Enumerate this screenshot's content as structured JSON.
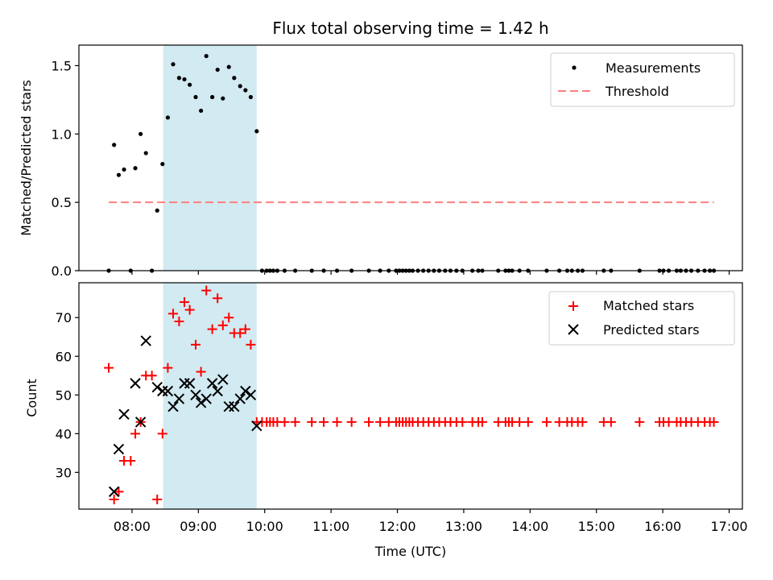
{
  "chart_data": {
    "type": "scatter",
    "title": "Flux total observing time = 1.42 h",
    "xlabel": "Time (UTC)",
    "x_units": "hours UTC (decimal)",
    "xlim": [
      7.2,
      17.2
    ],
    "x_ticks": [
      {
        "value": 8,
        "label": "08:00"
      },
      {
        "value": 9,
        "label": "09:00"
      },
      {
        "value": 10,
        "label": "10:00"
      },
      {
        "value": 11,
        "label": "11:00"
      },
      {
        "value": 12,
        "label": "12:00"
      },
      {
        "value": 13,
        "label": "13:00"
      },
      {
        "value": 14,
        "label": "14:00"
      },
      {
        "value": 15,
        "label": "15:00"
      },
      {
        "value": 16,
        "label": "16:00"
      },
      {
        "value": 17,
        "label": "17:00"
      }
    ],
    "shaded_interval": {
      "x_start": 8.47,
      "x_end": 9.88,
      "color": "#add8e6"
    },
    "colors": {
      "measurements": "#000000",
      "threshold": "#ff7f7f",
      "matched": "#ff0000",
      "predicted": "#000000",
      "shade": "#add8e6"
    },
    "top_panel": {
      "ylabel": "Matched/Predicted stars",
      "ylim": [
        0,
        1.65
      ],
      "y_ticks": [
        {
          "value": 0,
          "label": "0.0"
        },
        {
          "value": 0.5,
          "label": "0.5"
        },
        {
          "value": 1.0,
          "label": "1.0"
        },
        {
          "value": 1.5,
          "label": "1.5"
        }
      ],
      "threshold": {
        "y": 0.5,
        "x_start": 7.65,
        "x_end": 16.77
      },
      "legend": [
        {
          "label": "Measurements",
          "marker": "dot"
        },
        {
          "label": "Threshold",
          "marker": "dashed-line"
        }
      ],
      "measurements": {
        "x": [
          7.65,
          7.73,
          7.8,
          7.88,
          7.98,
          8.05,
          8.13,
          8.21,
          8.3,
          8.38,
          8.46,
          8.54,
          8.62,
          8.71,
          8.79,
          8.87,
          8.96,
          9.04,
          9.12,
          9.21,
          9.29,
          9.37,
          9.46,
          9.54,
          9.63,
          9.71,
          9.79,
          9.88,
          9.96,
          10.03,
          10.08,
          10.13,
          10.19,
          10.3,
          10.46,
          10.71,
          10.89,
          11.09,
          11.31,
          11.57,
          11.74,
          11.87,
          11.98,
          12.03,
          12.08,
          12.13,
          12.18,
          12.23,
          12.31,
          12.39,
          12.47,
          12.55,
          12.63,
          12.72,
          12.8,
          12.89,
          12.98,
          13.13,
          13.22,
          13.28,
          13.52,
          13.63,
          13.68,
          13.73,
          13.84,
          13.97,
          14.25,
          14.44,
          14.56,
          14.63,
          14.72,
          14.79,
          15.11,
          15.22,
          15.65,
          15.95,
          16.01,
          16.09,
          16.21,
          16.27,
          16.35,
          16.43,
          16.53,
          16.63,
          16.71,
          16.77
        ],
        "y": [
          0.0,
          0.92,
          0.7,
          0.74,
          0.0,
          0.75,
          1.0,
          0.86,
          0.0,
          0.44,
          0.78,
          1.12,
          1.51,
          1.41,
          1.4,
          1.36,
          1.27,
          1.17,
          1.57,
          1.27,
          1.47,
          1.26,
          1.49,
          1.41,
          1.35,
          1.32,
          1.27,
          1.02,
          0.0,
          0.0,
          0.0,
          0.0,
          0.0,
          0.0,
          0.0,
          0.0,
          0.0,
          0.0,
          0.0,
          0.0,
          0.0,
          0.0,
          0.0,
          0.0,
          0.0,
          0.0,
          0.0,
          0.0,
          0.0,
          0.0,
          0.0,
          0.0,
          0.0,
          0.0,
          0.0,
          0.0,
          0.0,
          0.0,
          0.0,
          0.0,
          0.0,
          0.0,
          0.0,
          0.0,
          0.0,
          0.0,
          0.0,
          0.0,
          0.0,
          0.0,
          0.0,
          0.0,
          0.0,
          0.0,
          0.0,
          0.0,
          0.0,
          0.0,
          0.0,
          0.0,
          0.0,
          0.0,
          0.0,
          0.0,
          0.0,
          0.0
        ]
      }
    },
    "bottom_panel": {
      "ylabel": "Count",
      "ylim": [
        20.5,
        79
      ],
      "y_ticks": [
        {
          "value": 30,
          "label": "30"
        },
        {
          "value": 40,
          "label": "40"
        },
        {
          "value": 50,
          "label": "50"
        },
        {
          "value": 60,
          "label": "60"
        },
        {
          "value": 70,
          "label": "70"
        }
      ],
      "legend": [
        {
          "label": "Matched stars",
          "marker": "plus"
        },
        {
          "label": "Predicted stars",
          "marker": "x"
        }
      ],
      "matched": {
        "x": [
          7.65,
          7.73,
          7.8,
          7.88,
          7.98,
          8.05,
          8.13,
          8.21,
          8.3,
          8.38,
          8.46,
          8.54,
          8.62,
          8.71,
          8.79,
          8.87,
          8.96,
          9.04,
          9.12,
          9.21,
          9.29,
          9.37,
          9.46,
          9.54,
          9.63,
          9.71,
          9.79,
          9.88,
          9.96,
          10.03,
          10.08,
          10.13,
          10.19,
          10.3,
          10.46,
          10.71,
          10.89,
          11.09,
          11.31,
          11.57,
          11.74,
          11.87,
          11.98,
          12.03,
          12.08,
          12.13,
          12.18,
          12.23,
          12.31,
          12.39,
          12.47,
          12.55,
          12.63,
          12.72,
          12.8,
          12.89,
          12.98,
          13.13,
          13.22,
          13.28,
          13.52,
          13.63,
          13.68,
          13.73,
          13.84,
          13.97,
          14.25,
          14.44,
          14.56,
          14.63,
          14.72,
          14.79,
          15.11,
          15.22,
          15.65,
          15.95,
          16.01,
          16.09,
          16.21,
          16.27,
          16.35,
          16.43,
          16.53,
          16.63,
          16.71,
          16.77
        ],
        "y": [
          57,
          23,
          25,
          33,
          33,
          40,
          43,
          55,
          55,
          23,
          40,
          57,
          71,
          69,
          74,
          72,
          63,
          56,
          77,
          67,
          75,
          68,
          70,
          66,
          66,
          67,
          63,
          43,
          43,
          43,
          43,
          43,
          43,
          43,
          43,
          43,
          43,
          43,
          43,
          43,
          43,
          43,
          43,
          43,
          43,
          43,
          43,
          43,
          43,
          43,
          43,
          43,
          43,
          43,
          43,
          43,
          43,
          43,
          43,
          43,
          43,
          43,
          43,
          43,
          43,
          43,
          43,
          43,
          43,
          43,
          43,
          43,
          43,
          43,
          43,
          43,
          43,
          43,
          43,
          43,
          43,
          43,
          43,
          43,
          43,
          43
        ]
      },
      "predicted": {
        "x": [
          7.73,
          7.8,
          7.88,
          8.05,
          8.13,
          8.21,
          8.38,
          8.46,
          8.54,
          8.62,
          8.71,
          8.79,
          8.87,
          8.96,
          9.04,
          9.12,
          9.21,
          9.29,
          9.37,
          9.46,
          9.54,
          9.63,
          9.71,
          9.79,
          9.88
        ],
        "y": [
          25,
          36,
          45,
          53,
          43,
          64,
          52,
          51,
          51,
          47,
          49,
          53,
          53,
          50,
          48,
          49,
          53,
          51,
          54,
          47,
          47,
          49,
          51,
          50,
          42
        ]
      }
    }
  }
}
